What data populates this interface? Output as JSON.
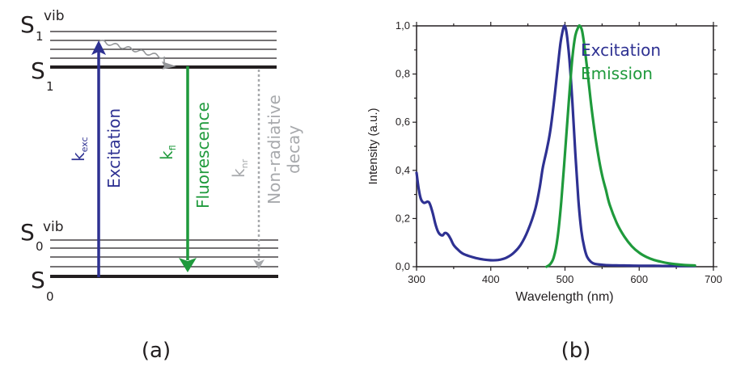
{
  "panel_a": {
    "caption": "(a)",
    "levels": {
      "s1_vib": {
        "main": "S",
        "sub": "1",
        "sup": "vib"
      },
      "s1": {
        "main": "S",
        "sub": "1"
      },
      "s0_vib": {
        "main": "S",
        "sub": "0",
        "sup": "vib"
      },
      "s0": {
        "main": "S",
        "sub": "0"
      }
    },
    "transitions": {
      "excitation": {
        "rate": "k",
        "rate_sub": "exc",
        "label": "Excitation",
        "color": "#2e3192"
      },
      "fluorescence": {
        "rate": "k",
        "rate_sub": "fl",
        "label": "Fluorescence",
        "color": "#1f9a3c"
      },
      "nonradiative": {
        "rate": "k",
        "rate_sub": "nr",
        "label_line1": "Non-radiative",
        "label_line2": "decay",
        "color": "#a7a9ac"
      }
    },
    "relaxation_color": "#939598"
  },
  "panel_b": {
    "caption": "(b)"
  },
  "chart_data": {
    "type": "line",
    "title": "",
    "xlabel": "Wavelength (nm)",
    "ylabel": "Intensity (a.u.)",
    "xlim": [
      300,
      700
    ],
    "ylim": [
      0.0,
      1.0
    ],
    "xticks": [
      300,
      400,
      500,
      600,
      700
    ],
    "xtick_labels": [
      "300",
      "400",
      "500",
      "600",
      "700"
    ],
    "yticks": [
      0.0,
      0.2,
      0.4,
      0.6,
      0.8,
      1.0
    ],
    "ytick_labels": [
      "0,0",
      "0,2",
      "0,4",
      "0,6",
      "0,8",
      "1,0"
    ],
    "grid": false,
    "legend_position": "top-right",
    "series": [
      {
        "name": "Excitation",
        "color": "#2e3192",
        "x": [
          300,
          303,
          306,
          310,
          315,
          318,
          322,
          326,
          330,
          335,
          338,
          342,
          346,
          350,
          356,
          362,
          370,
          380,
          390,
          400,
          410,
          420,
          430,
          440,
          450,
          460,
          466,
          470,
          475,
          480,
          485,
          490,
          494,
          497,
          499,
          501,
          503,
          506,
          510,
          514,
          518,
          522,
          526,
          530,
          535,
          540,
          550,
          560,
          580,
          600,
          620,
          640,
          660,
          675
        ],
        "y": [
          0.39,
          0.32,
          0.28,
          0.265,
          0.27,
          0.26,
          0.22,
          0.17,
          0.14,
          0.13,
          0.14,
          0.135,
          0.115,
          0.09,
          0.07,
          0.055,
          0.045,
          0.036,
          0.03,
          0.027,
          0.028,
          0.036,
          0.055,
          0.09,
          0.15,
          0.24,
          0.33,
          0.41,
          0.48,
          0.56,
          0.68,
          0.82,
          0.93,
          0.98,
          1.0,
          0.99,
          0.95,
          0.86,
          0.68,
          0.47,
          0.28,
          0.15,
          0.08,
          0.04,
          0.02,
          0.012,
          0.008,
          0.006,
          0.005,
          0.004,
          0.004,
          0.003,
          0.003,
          0.003
        ]
      },
      {
        "name": "Emission",
        "color": "#1f9a3c",
        "x": [
          475,
          480,
          485,
          490,
          495,
          500,
          505,
          510,
          514,
          518,
          520,
          523,
          526,
          530,
          535,
          540,
          545,
          550,
          555,
          560,
          570,
          580,
          590,
          600,
          610,
          620,
          630,
          640,
          650,
          660,
          675
        ],
        "y": [
          0.0,
          0.01,
          0.04,
          0.12,
          0.27,
          0.47,
          0.68,
          0.87,
          0.96,
          0.995,
          1.0,
          0.98,
          0.92,
          0.82,
          0.68,
          0.56,
          0.46,
          0.38,
          0.32,
          0.26,
          0.18,
          0.125,
          0.085,
          0.058,
          0.04,
          0.028,
          0.02,
          0.014,
          0.01,
          0.007,
          0.005
        ]
      }
    ]
  }
}
